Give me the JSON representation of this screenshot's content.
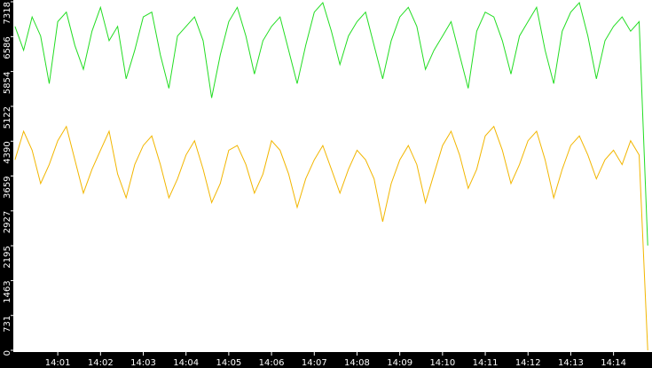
{
  "chart_data": {
    "type": "line",
    "x": [
      840.0,
      840.2,
      840.4,
      840.6,
      840.8,
      841.0,
      841.2,
      841.4,
      841.6,
      841.8,
      842.0,
      842.2,
      842.4,
      842.6,
      842.8,
      843.0,
      843.2,
      843.4,
      843.6,
      843.8,
      844.0,
      844.2,
      844.4,
      844.6,
      844.8,
      845.0,
      845.2,
      845.4,
      845.6,
      845.8,
      846.0,
      846.2,
      846.4,
      846.6,
      846.8,
      847.0,
      847.2,
      847.4,
      847.6,
      847.8,
      848.0,
      848.2,
      848.4,
      848.6,
      848.8,
      849.0,
      849.2,
      849.4,
      849.6,
      849.8,
      850.0,
      850.2,
      850.4,
      850.6,
      850.8,
      851.0,
      851.2,
      851.4,
      851.6,
      851.8,
      852.0,
      852.2,
      852.4,
      852.6,
      852.8,
      853.0,
      853.2,
      853.4,
      853.6,
      853.8,
      854.0,
      854.2,
      854.4,
      854.6,
      854.8
    ],
    "series": [
      {
        "color": "#22dd22",
        "values": [
          6800,
          6300,
          7000,
          6600,
          5600,
          6900,
          7100,
          6400,
          5900,
          6700,
          7200,
          6500,
          6800,
          5700,
          6300,
          7000,
          7100,
          6200,
          5500,
          6600,
          6800,
          7000,
          6500,
          5300,
          6200,
          6900,
          7200,
          6600,
          5800,
          6500,
          6800,
          7000,
          6300,
          5600,
          6400,
          7100,
          7300,
          6700,
          6000,
          6600,
          6900,
          7100,
          6400,
          5700,
          6500,
          7000,
          7200,
          6800,
          5900,
          6300,
          6600,
          6900,
          6200,
          5500,
          6700,
          7100,
          7000,
          6500,
          5800,
          6600,
          6900,
          7200,
          6300,
          5600,
          6700,
          7100,
          7300,
          6600,
          5700,
          6500,
          6800,
          7000,
          6700,
          6900,
          2200
        ]
      },
      {
        "color": "#f2b600",
        "values": [
          4000,
          4600,
          4200,
          3500,
          3900,
          4400,
          4700,
          4000,
          3300,
          3800,
          4200,
          4600,
          3700,
          3200,
          3900,
          4300,
          4500,
          3900,
          3200,
          3600,
          4100,
          4400,
          3800,
          3100,
          3500,
          4200,
          4300,
          3900,
          3300,
          3700,
          4400,
          4200,
          3700,
          3000,
          3600,
          4000,
          4300,
          3800,
          3300,
          3800,
          4200,
          4000,
          3600,
          2700,
          3500,
          4000,
          4300,
          3900,
          3100,
          3700,
          4300,
          4600,
          4100,
          3400,
          3800,
          4500,
          4700,
          4200,
          3500,
          3900,
          4400,
          4600,
          4000,
          3200,
          3800,
          4300,
          4500,
          4100,
          3600,
          4000,
          4200,
          3900,
          4400,
          4100,
          0
        ]
      }
    ],
    "xlim": [
      839.96,
      854.9
    ],
    "xticks": [
      {
        "value": 841,
        "label": "14:01"
      },
      {
        "value": 842,
        "label": "14:02"
      },
      {
        "value": 843,
        "label": "14:03"
      },
      {
        "value": 844,
        "label": "14:04"
      },
      {
        "value": 845,
        "label": "14:05"
      },
      {
        "value": 846,
        "label": "14:06"
      },
      {
        "value": 847,
        "label": "14:07"
      },
      {
        "value": 848,
        "label": "14:08"
      },
      {
        "value": 849,
        "label": "14:09"
      },
      {
        "value": 850,
        "label": "14:10"
      },
      {
        "value": 851,
        "label": "14:11"
      },
      {
        "value": 852,
        "label": "14:12"
      },
      {
        "value": 853,
        "label": "14:13"
      },
      {
        "value": 854,
        "label": "14:14"
      }
    ],
    "ylim": [
      0,
      7318
    ],
    "yticks": [
      0,
      731,
      1463,
      2195,
      2927,
      3659,
      4390,
      5122,
      5854,
      6586,
      7318
    ]
  }
}
